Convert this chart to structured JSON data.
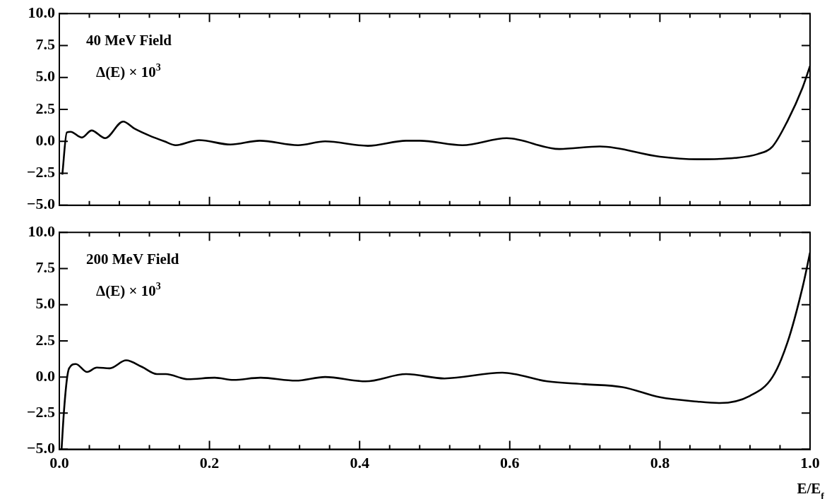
{
  "chart_data": [
    {
      "type": "line",
      "x": [
        0.004,
        0.01,
        0.015,
        0.03,
        0.043,
        0.061,
        0.085,
        0.1,
        0.12,
        0.14,
        0.155,
        0.186,
        0.228,
        0.267,
        0.318,
        0.354,
        0.411,
        0.462,
        0.48,
        0.537,
        0.596,
        0.666,
        0.72,
        0.8,
        0.85,
        0.9,
        0.93,
        0.95,
        0.97,
        0.99,
        1.0
      ],
      "series": [
        {
          "color": "#000000",
          "values": [
            -2.6,
            0.7,
            0.75,
            0.3,
            0.85,
            0.25,
            1.55,
            1.0,
            0.45,
            0.0,
            -0.3,
            0.1,
            -0.25,
            0.05,
            -0.3,
            0.0,
            -0.35,
            0.05,
            0.05,
            -0.3,
            0.25,
            -0.6,
            -0.4,
            -1.2,
            -1.4,
            -1.3,
            -1.0,
            -0.4,
            1.6,
            4.2,
            5.9
          ]
        }
      ],
      "xlim": [
        0,
        1
      ],
      "xticks": [
        0,
        {
          "value": 0.04,
          "label": null
        },
        {
          "value": 0.08,
          "label": null
        },
        {
          "value": 0.12,
          "label": null
        },
        {
          "value": 0.16,
          "label": null
        },
        0.2,
        {
          "value": 0.24,
          "label": null
        },
        {
          "value": 0.28,
          "label": null
        },
        {
          "value": 0.32,
          "label": null
        },
        {
          "value": 0.36,
          "label": null
        },
        0.4,
        {
          "value": 0.44,
          "label": null
        },
        {
          "value": 0.48,
          "label": null
        },
        {
          "value": 0.52,
          "label": null
        },
        {
          "value": 0.56,
          "label": null
        },
        0.6,
        {
          "value": 0.64,
          "label": null
        },
        {
          "value": 0.68,
          "label": null
        },
        {
          "value": 0.72,
          "label": null
        },
        {
          "value": 0.76,
          "label": null
        },
        0.8,
        {
          "value": 0.84,
          "label": null
        },
        {
          "value": 0.88,
          "label": null
        },
        {
          "value": 0.92,
          "label": null
        },
        {
          "value": 0.96,
          "label": null
        },
        1
      ],
      "ylim": [
        -5,
        10
      ],
      "yticks": [
        {
          "value": -5,
          "label": "−5.0"
        },
        {
          "value": -2.5,
          "label": "−2.5"
        },
        {
          "value": 0,
          "label": "0.0"
        },
        {
          "value": 2.5,
          "label": "2.5"
        },
        {
          "value": 5,
          "label": "5.0"
        },
        {
          "value": 7.5,
          "label": "7.5"
        },
        {
          "value": 10,
          "label": "10.0"
        }
      ],
      "tick_labels": "y",
      "grid": false,
      "annotations": [
        "40 MeV Field",
        "Δ(E) × 10$^{3}$"
      ]
    },
    {
      "type": "line",
      "x": [
        0.003,
        0.006,
        0.01,
        0.013,
        0.022,
        0.037,
        0.05,
        0.067,
        0.089,
        0.11,
        0.13,
        0.142,
        0.171,
        0.207,
        0.232,
        0.268,
        0.315,
        0.354,
        0.408,
        0.462,
        0.513,
        0.59,
        0.65,
        0.7,
        0.75,
        0.8,
        0.85,
        0.88,
        0.92,
        0.95,
        0.97,
        0.99,
        1.0
      ],
      "series": [
        {
          "color": "#000000",
          "values": [
            -5.0,
            -2.5,
            -0.2,
            0.6,
            0.9,
            0.35,
            0.65,
            0.6,
            1.15,
            0.7,
            0.2,
            0.2,
            -0.15,
            -0.05,
            -0.2,
            -0.05,
            -0.25,
            0.0,
            -0.3,
            0.2,
            -0.1,
            0.3,
            -0.3,
            -0.5,
            -0.7,
            -1.4,
            -1.7,
            -1.8,
            -1.3,
            0.0,
            2.4,
            6.2,
            8.6
          ]
        }
      ],
      "xlim": [
        0,
        1
      ],
      "xticks": [
        {
          "value": 0,
          "label": "0.0"
        },
        {
          "value": 0.04,
          "label": null
        },
        {
          "value": 0.08,
          "label": null
        },
        {
          "value": 0.12,
          "label": null
        },
        {
          "value": 0.16,
          "label": null
        },
        0.2,
        {
          "value": 0.24,
          "label": null
        },
        {
          "value": 0.28,
          "label": null
        },
        {
          "value": 0.32,
          "label": null
        },
        {
          "value": 0.36,
          "label": null
        },
        0.4,
        {
          "value": 0.44,
          "label": null
        },
        {
          "value": 0.48,
          "label": null
        },
        {
          "value": 0.52,
          "label": null
        },
        {
          "value": 0.56,
          "label": null
        },
        0.6,
        {
          "value": 0.64,
          "label": null
        },
        {
          "value": 0.68,
          "label": null
        },
        {
          "value": 0.72,
          "label": null
        },
        {
          "value": 0.76,
          "label": null
        },
        0.8,
        {
          "value": 0.84,
          "label": null
        },
        {
          "value": 0.88,
          "label": null
        },
        {
          "value": 0.92,
          "label": null
        },
        {
          "value": 0.96,
          "label": null
        },
        {
          "value": 1,
          "label": "1.0"
        }
      ],
      "ylim": [
        -5,
        10
      ],
      "yticks": [
        {
          "value": -5,
          "label": "−5.0"
        },
        {
          "value": -2.5,
          "label": "−2.5"
        },
        {
          "value": 0,
          "label": "0.0"
        },
        {
          "value": 2.5,
          "label": "2.5"
        },
        {
          "value": 5,
          "label": "5.0"
        },
        {
          "value": 7.5,
          "label": "7.5"
        },
        {
          "value": 10,
          "label": "10.0"
        }
      ],
      "grid": false,
      "xlabel": "E/E$_{f}$",
      "annotations": [
        "200 MeV Field",
        "Δ(E) × 10$^{3}$"
      ]
    }
  ]
}
